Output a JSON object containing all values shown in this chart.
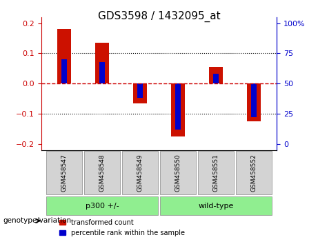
{
  "title": "GDS3598 / 1432095_at",
  "samples": [
    "GSM458547",
    "GSM458548",
    "GSM458549",
    "GSM458550",
    "GSM458551",
    "GSM458552"
  ],
  "red_values": [
    0.18,
    0.135,
    -0.065,
    -0.175,
    0.055,
    -0.125
  ],
  "blue_values_pct": [
    70,
    68,
    38,
    12,
    58,
    22
  ],
  "groups": [
    {
      "label": "p300 +/-",
      "indices": [
        0,
        1,
        2
      ],
      "color": "#90EE90"
    },
    {
      "label": "wild-type",
      "indices": [
        3,
        4,
        5
      ],
      "color": "#90EE90"
    }
  ],
  "ylim": [
    -0.22,
    0.22
  ],
  "yticks_left": [
    -0.2,
    -0.1,
    0,
    0.1,
    0.2
  ],
  "yticks_right": [
    0,
    25,
    50,
    75,
    100
  ],
  "left_axis_color": "#cc0000",
  "right_axis_color": "#0000cc",
  "bar_red_color": "#cc1100",
  "bar_blue_color": "#0000cc",
  "zero_line_color": "#cc0000",
  "grid_color": "black",
  "background_color": "#f0f0f0",
  "genotype_label": "genotype/variation",
  "legend_red": "transformed count",
  "legend_blue": "percentile rank within the sample"
}
